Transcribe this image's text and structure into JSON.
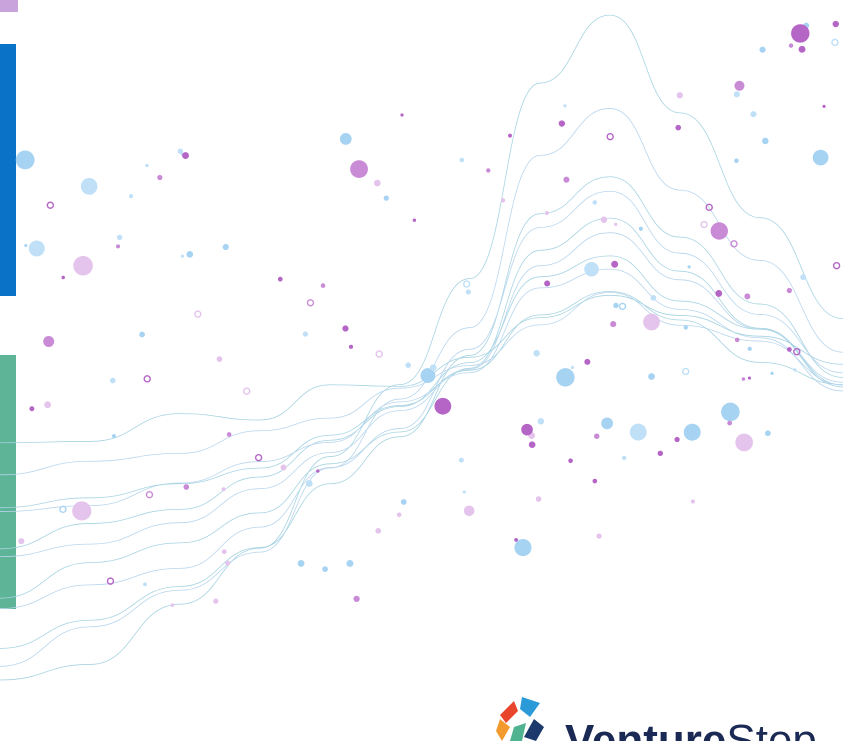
{
  "logo": {
    "name_bold": "Venture",
    "name_light": "Step"
  }
}
